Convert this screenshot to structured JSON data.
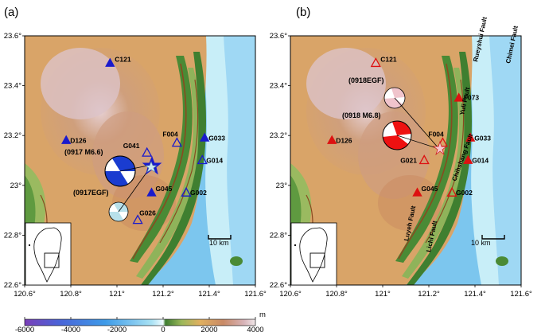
{
  "panels": [
    {
      "label": "(a)",
      "lon_ticks": [
        "120.6°",
        "120.8°",
        "121°",
        "121.2°",
        "121.4°",
        "121.6°"
      ],
      "lat_ticks": [
        "23.6°",
        "23.4°",
        "23.2°",
        "23°",
        "22.8°",
        "22.6°"
      ],
      "stations": [
        {
          "name": "C121",
          "lon": 120.97,
          "lat": 23.49,
          "filled": true
        },
        {
          "name": "D126",
          "lon": 120.78,
          "lat": 23.18,
          "filled": true
        },
        {
          "name": "G041",
          "lon": 21.13,
          "lat": 23.13,
          "filled": false
        },
        {
          "name": "F004",
          "lon": 121.26,
          "lat": 23.17,
          "filled": false
        },
        {
          "name": "G033",
          "lon": 121.38,
          "lat": 23.19,
          "filled": true
        },
        {
          "name": "G014",
          "lon": 121.37,
          "lat": 23.1,
          "filled": false
        },
        {
          "name": "G045",
          "lon": 121.15,
          "lat": 22.97,
          "filled": true
        },
        {
          "name": "G002",
          "lon": 121.3,
          "lat": 22.97,
          "filled": false
        },
        {
          "name": "G026",
          "lon": 121.09,
          "lat": 22.86,
          "filled": false
        }
      ],
      "events": [
        {
          "label": "(0917 M6.6)",
          "kind": "mainshock"
        },
        {
          "label": "(0917EGF)",
          "kind": "egf"
        }
      ],
      "faults": [],
      "scale_label": "10 km"
    },
    {
      "label": "(b)",
      "lon_ticks": [
        "120.6°",
        "120.8°",
        "121°",
        "121.2°",
        "121.4°",
        "121.6°"
      ],
      "lat_ticks": [
        "23.6°",
        "23.4°",
        "23.2°",
        "23°",
        "22.8°",
        "22.6°"
      ],
      "stations": [
        {
          "name": "C121",
          "lon": 120.97,
          "lat": 23.49,
          "filled": false
        },
        {
          "name": "D126",
          "lon": 120.78,
          "lat": 23.18,
          "filled": true
        },
        {
          "name": "F073",
          "lon": 121.33,
          "lat": 23.35,
          "filled": true
        },
        {
          "name": "F004",
          "lon": 121.26,
          "lat": 23.17,
          "filled": false
        },
        {
          "name": "G033",
          "lon": 121.38,
          "lat": 23.19,
          "filled": true
        },
        {
          "name": "G021",
          "lon": 121.18,
          "lat": 23.1,
          "filled": false
        },
        {
          "name": "G014",
          "lon": 121.37,
          "lat": 23.1,
          "filled": true
        },
        {
          "name": "G045",
          "lon": 121.15,
          "lat": 22.97,
          "filled": true
        },
        {
          "name": "G002",
          "lon": 121.3,
          "lat": 22.97,
          "filled": false
        }
      ],
      "events": [
        {
          "label": "(0918EGF)",
          "kind": "egf"
        },
        {
          "label": "(0918 M6.8)",
          "kind": "mainshock"
        }
      ],
      "faults": [
        "Rueyshui Fault",
        "Chimei Fault",
        "Yuli Fault",
        "Chihshang Fault",
        "Luyeh Fault",
        "Lichi Fault"
      ],
      "scale_label": "10 km"
    }
  ],
  "colorbar": {
    "ticks": [
      "-6000",
      "-4000",
      "-2000",
      "0",
      "2000",
      "4000"
    ],
    "unit": "m"
  },
  "colors": {
    "blue_station": "#1a1acc",
    "red_station": "#dd1111",
    "sea_deep": "#3b6fd9",
    "sea_shallow": "#b8e6f5",
    "lowland": "#3f7f33",
    "highland": "#d9a26a",
    "peak": "#d7c1c7"
  }
}
